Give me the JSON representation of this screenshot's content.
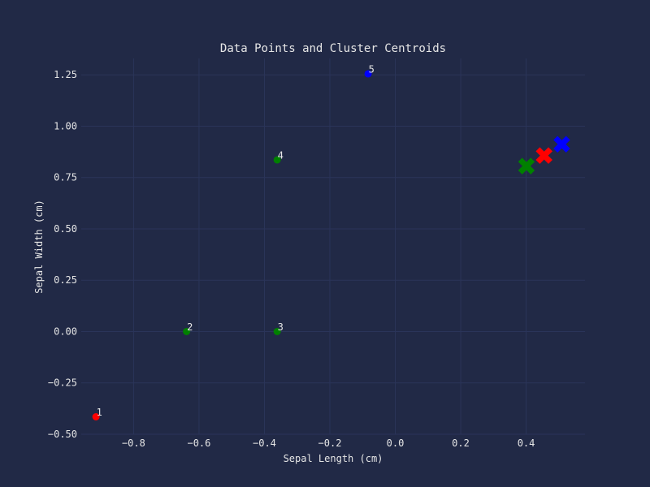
{
  "chart_data": {
    "type": "scatter",
    "title": "Data Points and Cluster Centroids",
    "xlabel": "Sepal Length (cm)",
    "ylabel": "Sepal Width (cm)",
    "xlim": [
      -0.96,
      0.58
    ],
    "ylim": [
      -0.5,
      1.33
    ],
    "xticks": [
      -0.8,
      -0.6,
      -0.4,
      -0.2,
      0.0,
      0.2,
      0.4
    ],
    "xtick_labels": [
      "−0.8",
      "−0.6",
      "−0.4",
      "−0.2",
      "0.0",
      "0.2",
      "0.4"
    ],
    "yticks": [
      -0.5,
      -0.25,
      0.0,
      0.25,
      0.5,
      0.75,
      1.0,
      1.25
    ],
    "ytick_labels": [
      "−0.50",
      "−0.25",
      "0.00",
      "0.25",
      "0.50",
      "0.75",
      "1.00",
      "1.25"
    ],
    "grid": true,
    "points": [
      {
        "label": "1",
        "x": -0.915,
        "y": -0.415,
        "color": "#ff0000"
      },
      {
        "label": "2",
        "x": -0.638,
        "y": 0.0,
        "color": "#008000"
      },
      {
        "label": "3",
        "x": -0.361,
        "y": 0.0,
        "color": "#008000"
      },
      {
        "label": "4",
        "x": -0.361,
        "y": 0.836,
        "color": "#008000"
      },
      {
        "label": "5",
        "x": -0.083,
        "y": 1.255,
        "color": "#0000ff"
      }
    ],
    "centroids": [
      {
        "x": 0.401,
        "y": 0.806,
        "color": "#008000"
      },
      {
        "x": 0.455,
        "y": 0.857,
        "color": "#ff0000"
      },
      {
        "x": 0.509,
        "y": 0.912,
        "color": "#0000ff"
      }
    ]
  },
  "colors": {
    "background": "#212946",
    "grid": "#2a3459",
    "text": "#e6e6e6"
  }
}
